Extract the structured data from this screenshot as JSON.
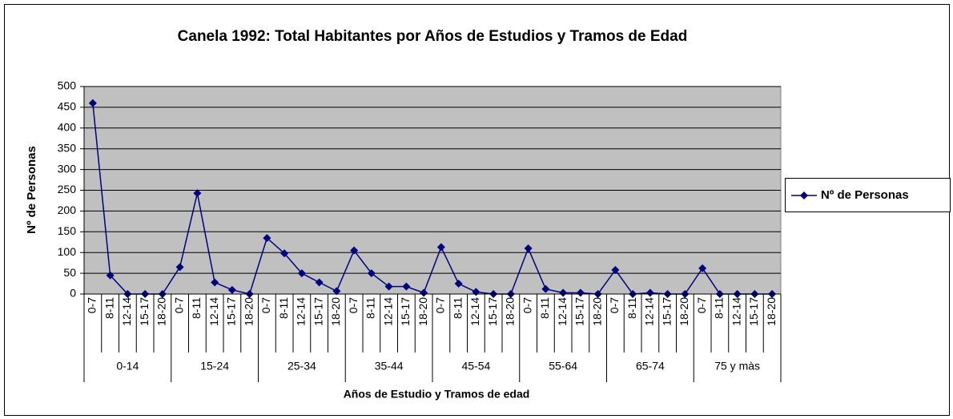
{
  "chart_data": {
    "type": "line",
    "title": "Canela 1992: Total Habitantes por Años de Estudios y Tramos de Edad",
    "x_label": "Años de Estudio y Tramos de edad",
    "y_label": "Nº de Personas",
    "groups": [
      "0-14",
      "15-24",
      "25-34",
      "35-44",
      "45-54",
      "55-64",
      "65-74",
      "75 y màs"
    ],
    "categories": [
      "0-7",
      "8-11",
      "12-14",
      "15-17",
      "18-20",
      "0-7",
      "8-11",
      "12-14",
      "15-17",
      "18-20",
      "0-7",
      "8-11",
      "12-14",
      "15-17",
      "18-20",
      "0-7",
      "8-11",
      "12-14",
      "15-17",
      "18-20",
      "0-7",
      "8-11",
      "12-14",
      "15-17",
      "18-20",
      "0-7",
      "8-11",
      "12-14",
      "15-17",
      "18-20",
      "0-7",
      "8-11",
      "12-14",
      "15-17",
      "18-20",
      "0-7",
      "8-11",
      "12-14",
      "15-17",
      "18-20"
    ],
    "series": [
      {
        "name": "Nº de Personas",
        "color": "#000080",
        "values": [
          460,
          45,
          0,
          0,
          0,
          65,
          243,
          28,
          10,
          0,
          135,
          98,
          50,
          28,
          7,
          105,
          50,
          18,
          18,
          3,
          113,
          25,
          5,
          0,
          0,
          110,
          12,
          3,
          3,
          0,
          58,
          0,
          3,
          0,
          0,
          62,
          0,
          0,
          0,
          0
        ]
      }
    ],
    "ylim": [
      0,
      500
    ],
    "yticks": [
      0,
      50,
      100,
      150,
      200,
      250,
      300,
      350,
      400,
      450,
      500
    ],
    "grid": true,
    "legend": "right",
    "plot_background": "#c0c0c0"
  }
}
